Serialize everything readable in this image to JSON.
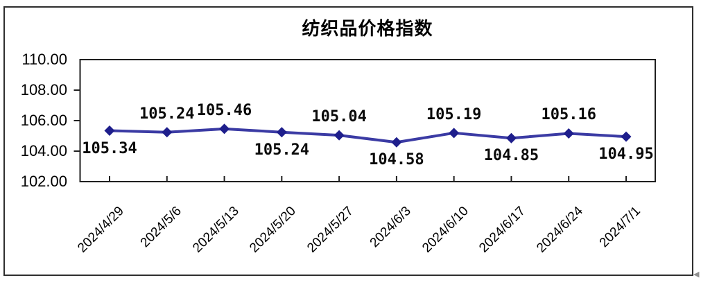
{
  "window": {
    "background": "#ffffff",
    "border_color": "#2e2e2e"
  },
  "chart_data": {
    "type": "line",
    "title": "纺织品价格指数",
    "categories": [
      "2024/4/29",
      "2024/5/6",
      "2024/5/13",
      "2024/5/20",
      "2024/5/27",
      "2024/6/3",
      "2024/6/10",
      "2024/6/17",
      "2024/6/24",
      "2024/7/1"
    ],
    "values": [
      105.34,
      105.24,
      105.46,
      105.24,
      105.04,
      104.58,
      105.19,
      104.85,
      105.16,
      104.95
    ],
    "data_labels": [
      "105.34",
      "105.24",
      "105.46",
      "105.24",
      "105.04",
      "104.58",
      "105.19",
      "104.85",
      "105.16",
      "104.95"
    ],
    "data_label_positions": [
      "below",
      "above",
      "above",
      "below",
      "above",
      "below",
      "above",
      "below",
      "above",
      "below"
    ],
    "xlabel": "",
    "ylabel": "",
    "ylim": [
      102,
      110
    ],
    "y_tick_step": 2,
    "y_ticks": [
      {
        "value": 110,
        "label": "110.00"
      },
      {
        "value": 108,
        "label": "108.00"
      },
      {
        "value": 106,
        "label": "106.00"
      },
      {
        "value": 104,
        "label": "104.00"
      },
      {
        "value": 102,
        "label": "102.00"
      }
    ],
    "grid": false,
    "legend_position": "none",
    "line_color": "#3b3ba4",
    "marker_color": "#1e1e8c",
    "marker_shape": "diamond",
    "axis_color": "#1f1f1f",
    "text_color": "#000000"
  },
  "decorations": {
    "corner_glyph": "◀"
  }
}
